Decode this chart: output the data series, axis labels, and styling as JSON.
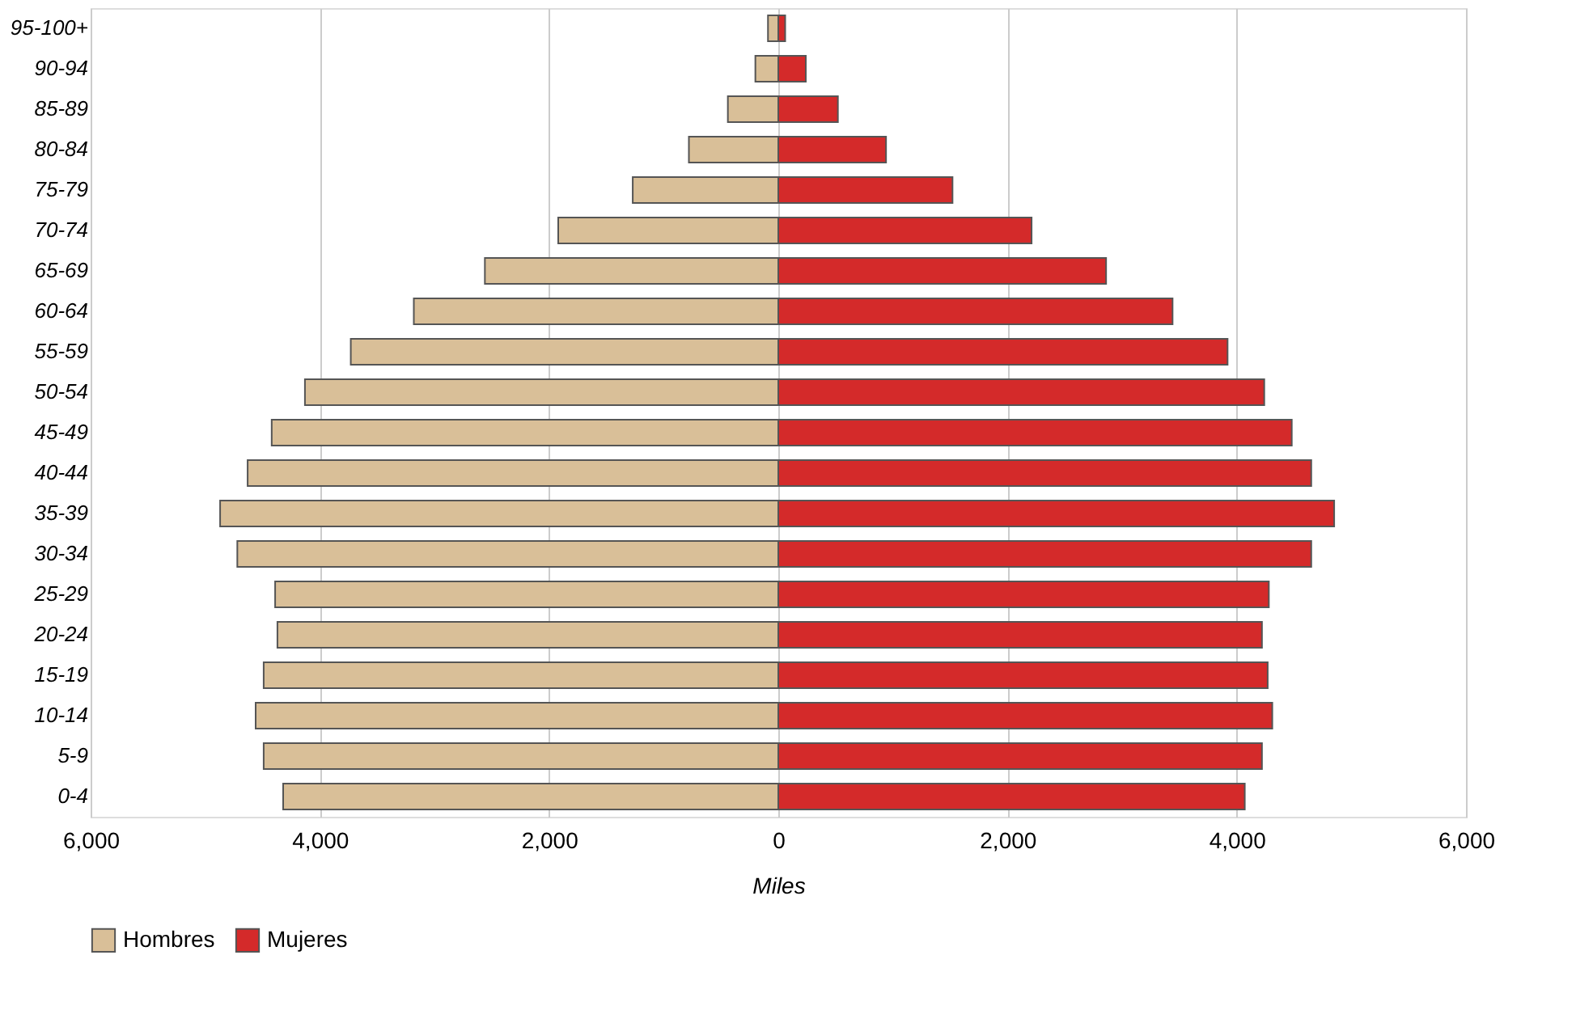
{
  "chart_data": {
    "type": "bar",
    "orientation": "horizontal",
    "xlabel": "Miles",
    "categories": [
      "95-100+",
      "90-94",
      "85-89",
      "80-84",
      "75-79",
      "70-74",
      "65-69",
      "60-64",
      "55-59",
      "50-54",
      "45-49",
      "40-44",
      "35-39",
      "30-34",
      "25-29",
      "20-24",
      "15-19",
      "10-14",
      "5-9",
      "0-4"
    ],
    "series": [
      {
        "name": "Hombres",
        "color": "#d9bf98",
        "values": [
          -90,
          -200,
          -440,
          -780,
          -1270,
          -1920,
          -2560,
          -3180,
          -3730,
          -4130,
          -4420,
          -4630,
          -4870,
          -4720,
          -4390,
          -4370,
          -4490,
          -4560,
          -4490,
          -4320
        ]
      },
      {
        "name": "Mujeres",
        "color": "#d42a2a",
        "values": [
          60,
          240,
          520,
          940,
          1520,
          2210,
          2860,
          3440,
          3920,
          4240,
          4480,
          4650,
          4850,
          4650,
          4280,
          4220,
          4270,
          4310,
          4220,
          4070
        ]
      }
    ],
    "xlim": [
      -6000,
      6000
    ],
    "xticks": [
      {
        "value": -6000,
        "label": "6,000"
      },
      {
        "value": -4000,
        "label": "4,000"
      },
      {
        "value": -2000,
        "label": "2,000"
      },
      0,
      {
        "value": 2000,
        "label": "2,000"
      },
      {
        "value": 4000,
        "label": "4,000"
      },
      {
        "value": 6000,
        "label": "6,000"
      }
    ],
    "stacked": true,
    "grid": "x",
    "legend": "bottom"
  }
}
